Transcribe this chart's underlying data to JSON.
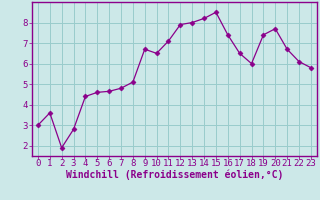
{
  "x": [
    0,
    1,
    2,
    3,
    4,
    5,
    6,
    7,
    8,
    9,
    10,
    11,
    12,
    13,
    14,
    15,
    16,
    17,
    18,
    19,
    20,
    21,
    22,
    23
  ],
  "y": [
    3.0,
    3.6,
    1.9,
    2.8,
    4.4,
    4.6,
    4.65,
    4.8,
    5.1,
    6.7,
    6.5,
    7.1,
    7.9,
    8.0,
    8.2,
    8.5,
    7.4,
    6.5,
    6.0,
    7.4,
    7.7,
    6.7,
    6.1,
    5.8
  ],
  "line_color": "#8B008B",
  "marker": "D",
  "marker_size": 2.5,
  "bg_color": "#cce8e8",
  "grid_color": "#99cccc",
  "axis_color": "#8B008B",
  "xlabel": "Windchill (Refroidissement éolien,°C)",
  "xlabel_fontsize": 7,
  "tick_fontsize": 6.5,
  "ylim": [
    1.5,
    9.0
  ],
  "xlim": [
    -0.5,
    23.5
  ],
  "yticks": [
    2,
    3,
    4,
    5,
    6,
    7,
    8
  ],
  "xticks": [
    0,
    1,
    2,
    3,
    4,
    5,
    6,
    7,
    8,
    9,
    10,
    11,
    12,
    13,
    14,
    15,
    16,
    17,
    18,
    19,
    20,
    21,
    22,
    23
  ]
}
